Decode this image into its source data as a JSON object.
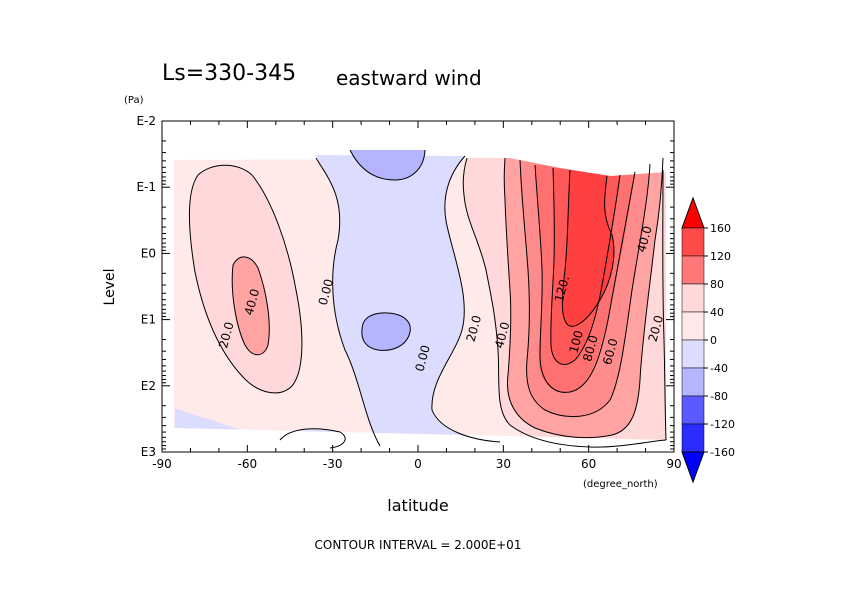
{
  "chart_data": {
    "type": "heatmap",
    "title_left": "Ls=330-345",
    "title_right": "eastward wind",
    "xlabel": "latitude",
    "xunit": "(degree_north)",
    "ylabel": "Level",
    "yunit": "(Pa)",
    "footer": "CONTOUR INTERVAL = 2.000E+01",
    "xlim": [
      -90,
      90
    ],
    "ylim_log10": [
      -2,
      3
    ],
    "x_ticks": [
      "-90",
      "-60",
      "-30",
      "0",
      "30",
      "60",
      "90"
    ],
    "y_ticks": [
      "E-2",
      "E-1",
      "E0",
      "E1",
      "E2",
      "E3"
    ],
    "colorbar": {
      "levels": [
        "160",
        "120",
        "80",
        "40",
        "0",
        "-40",
        "-80",
        "-120",
        "-160"
      ],
      "colors": [
        "#ff0000",
        "#ff4a4a",
        "#ff7878",
        "#ffa3a3",
        "#ffd9d9",
        "#ffeaea",
        "#dcdcff",
        "#b4b4ff",
        "#8a8aff",
        "#5a5aff",
        "#2c2cff",
        "#0000ff"
      ]
    },
    "contour_labels": [
      {
        "text": "40.0",
        "lat": -57,
        "lev": 0.75
      },
      {
        "text": "20.0",
        "lat": -66,
        "lev": 1.25
      },
      {
        "text": "0.00",
        "lat": -31,
        "lev": 0.6
      },
      {
        "text": "0.00",
        "lat": 3,
        "lev": 1.6
      },
      {
        "text": "20.0",
        "lat": 21,
        "lev": 1.15
      },
      {
        "text": "40.0",
        "lat": 31,
        "lev": 1.25
      },
      {
        "text": "120.",
        "lat": 52,
        "lev": 0.55
      },
      {
        "text": "100",
        "lat": 57,
        "lev": 1.35
      },
      {
        "text": "80.0",
        "lat": 62,
        "lev": 1.45
      },
      {
        "text": "60.0",
        "lat": 69,
        "lev": 1.5
      },
      {
        "text": "40.0",
        "lat": 81,
        "lev": -0.2
      },
      {
        "text": "20.0",
        "lat": 85,
        "lev": 1.15
      }
    ]
  }
}
